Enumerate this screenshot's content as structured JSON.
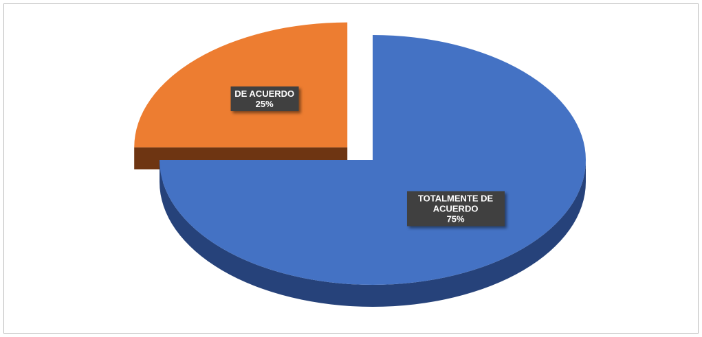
{
  "chart_data": {
    "type": "pie",
    "categories": [
      "TOTALMENTE DE ACUERDO",
      "DE ACUERDO"
    ],
    "values": [
      75,
      25
    ],
    "value_labels": [
      "75%",
      "25%"
    ],
    "colors": [
      "#4472c4",
      "#ed7d31"
    ],
    "side_colors": [
      "#26427a",
      "#6e3512"
    ]
  }
}
